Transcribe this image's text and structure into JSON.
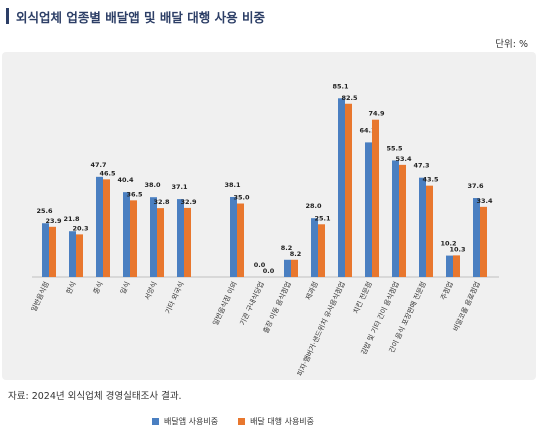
{
  "title": "외식업체 업종별 배달앱 및 배달 대행 사용 비중",
  "unit": "단위: %",
  "source": "자료: 2024년 외식업체 경영실태조사 결과.",
  "colors": {
    "app": "#4a7fc1",
    "agency": "#e8772e",
    "panel": "#f0f0f0",
    "title": "#2c3e66"
  },
  "chart_data": {
    "type": "bar",
    "categories": [
      "일반음식점",
      "한식",
      "중식",
      "일식",
      "서양식",
      "기타 외국식",
      "일반음식점 이외",
      "기관 구내식당업",
      "출장 이동 음식점업",
      "제과점",
      "피자·햄버거·샌드위치 유사음식점업",
      "치킨 전문점",
      "김밥 및 기타 간이 음식점업",
      "간이 음식 포장판매 전문점",
      "주점업",
      "비알코올 음료점업"
    ],
    "gaps_after": [
      5
    ],
    "series": [
      {
        "name": "배달앱 사용비중",
        "values": [
          25.6,
          21.8,
          47.7,
          40.4,
          38.0,
          37.1,
          38.1,
          0.0,
          8.2,
          28.0,
          85.1,
          64.1,
          55.5,
          47.3,
          10.2,
          37.6
        ]
      },
      {
        "name": "배달 대행 사용비중",
        "values": [
          23.9,
          20.3,
          46.5,
          36.5,
          32.8,
          32.9,
          35.0,
          0.0,
          8.2,
          25.1,
          82.5,
          74.9,
          53.4,
          43.5,
          10.3,
          33.4
        ]
      }
    ],
    "ylim": [
      0,
      90
    ],
    "legend_position": "bottom-center",
    "grid": false
  }
}
